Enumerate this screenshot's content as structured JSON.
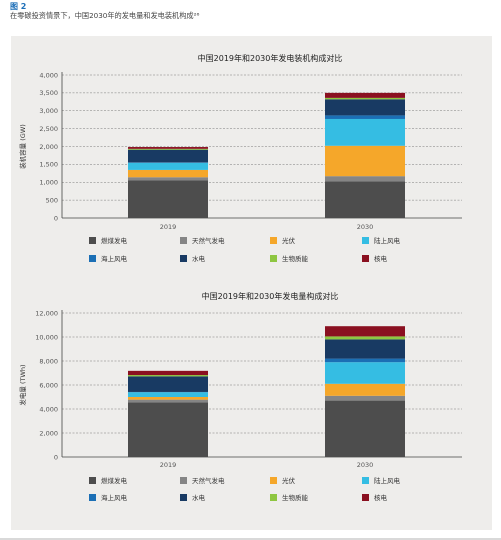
{
  "figure": {
    "label": "图 2",
    "caption": "在零碳投资情景下，中国2030年的发电量和发电装机构成²⁶"
  },
  "legend_items": [
    {
      "name": "燃煤发电",
      "color": "#4d4d4d"
    },
    {
      "name": "天然气发电",
      "color": "#858585"
    },
    {
      "name": "光伏",
      "color": "#f5a72a"
    },
    {
      "name": "陆上风电",
      "color": "#35bde3"
    },
    {
      "name": "海上风电",
      "color": "#1b6fb5"
    },
    {
      "name": "水电",
      "color": "#183a63"
    },
    {
      "name": "生物质能",
      "color": "#8ec641"
    },
    {
      "name": "核电",
      "color": "#8a1020"
    }
  ],
  "chart_data": [
    {
      "type": "bar",
      "stacked": true,
      "title": "中国2019年和2030年发电装机构成对比",
      "ylabel": "装机容量 (GW)",
      "xlabel": "",
      "ylim": [
        0,
        4000
      ],
      "yticks": [
        "0",
        "500",
        "1,000",
        "1,500",
        "2,000",
        "2,500",
        "3,000",
        "3,500",
        "4,000"
      ],
      "ytick_values": [
        0,
        500,
        1000,
        1500,
        2000,
        2500,
        3000,
        3500,
        4000
      ],
      "categories": [
        "2019",
        "2030"
      ],
      "grid": "dashed",
      "legend_position": "bottom",
      "series": [
        {
          "name": "燃煤发电",
          "values": [
            1050,
            1020
          ]
        },
        {
          "name": "天然气发电",
          "values": [
            90,
            150
          ]
        },
        {
          "name": "光伏",
          "values": [
            205,
            850
          ]
        },
        {
          "name": "陆上风电",
          "values": [
            200,
            750
          ]
        },
        {
          "name": "海上风电",
          "values": [
            10,
            100
          ]
        },
        {
          "name": "水电",
          "values": [
            355,
            450
          ]
        },
        {
          "name": "生物质能",
          "values": [
            25,
            40
          ]
        },
        {
          "name": "核电",
          "values": [
            50,
            140
          ]
        }
      ]
    },
    {
      "type": "bar",
      "stacked": true,
      "title": "中国2019年和2030年发电量构成对比",
      "ylabel": "发电量 (TWh)",
      "xlabel": "",
      "ylim": [
        0,
        12000
      ],
      "yticks": [
        "0",
        "2,000",
        "4,000",
        "6,000",
        "8,000",
        "10,000",
        "12,000"
      ],
      "ytick_values": [
        0,
        2000,
        4000,
        6000,
        8000,
        10000,
        12000
      ],
      "categories": [
        "2019",
        "2030"
      ],
      "grid": "dashed",
      "legend_position": "bottom",
      "series": [
        {
          "name": "燃煤发电",
          "values": [
            4550,
            4700
          ]
        },
        {
          "name": "天然气发电",
          "values": [
            230,
            400
          ]
        },
        {
          "name": "光伏",
          "values": [
            220,
            1000
          ]
        },
        {
          "name": "陆上风电",
          "values": [
            400,
            1800
          ]
        },
        {
          "name": "海上风电",
          "values": [
            20,
            300
          ]
        },
        {
          "name": "水电",
          "values": [
            1300,
            1600
          ]
        },
        {
          "name": "生物质能",
          "values": [
            110,
            250
          ]
        },
        {
          "name": "核电",
          "values": [
            350,
            850
          ]
        }
      ]
    }
  ]
}
